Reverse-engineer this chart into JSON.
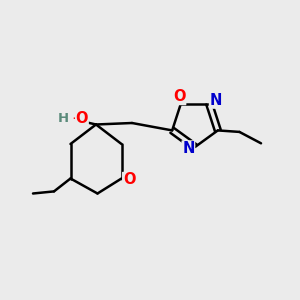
{
  "bg_color": "#ebebeb",
  "bond_color": "#000000",
  "bond_width": 1.8,
  "atom_colors": {
    "O": "#ff0000",
    "N": "#0000cc",
    "C": "#000000",
    "H": "#5a8a7a"
  },
  "font_size": 10.5,
  "small_font_size": 9.5
}
